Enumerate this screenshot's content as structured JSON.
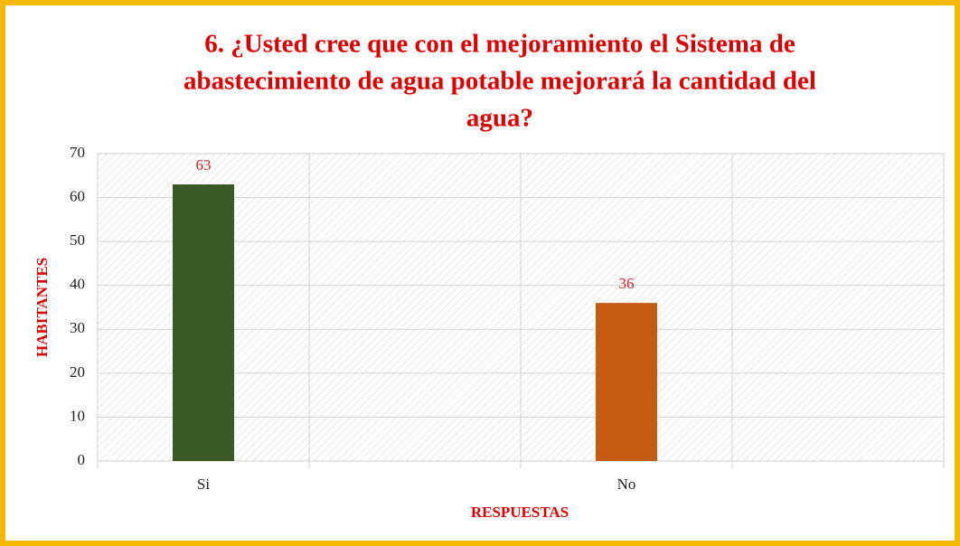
{
  "chart_data": {
    "type": "bar",
    "title": [
      "6. ¿Usted cree que con el mejoramiento el Sistema de",
      "abastecimiento de agua potable mejorará la cantidad del",
      "agua?"
    ],
    "categories": [
      "Si",
      "No"
    ],
    "values": [
      63,
      36
    ],
    "colors": [
      "#3b5a25",
      "#c55a11"
    ],
    "x_label": "RESPUESTAS",
    "y_label": "HABITANTES",
    "ylim": [
      0,
      70
    ],
    "yticks": [
      0,
      10,
      20,
      30,
      40,
      50,
      60,
      70
    ],
    "grid": true
  }
}
